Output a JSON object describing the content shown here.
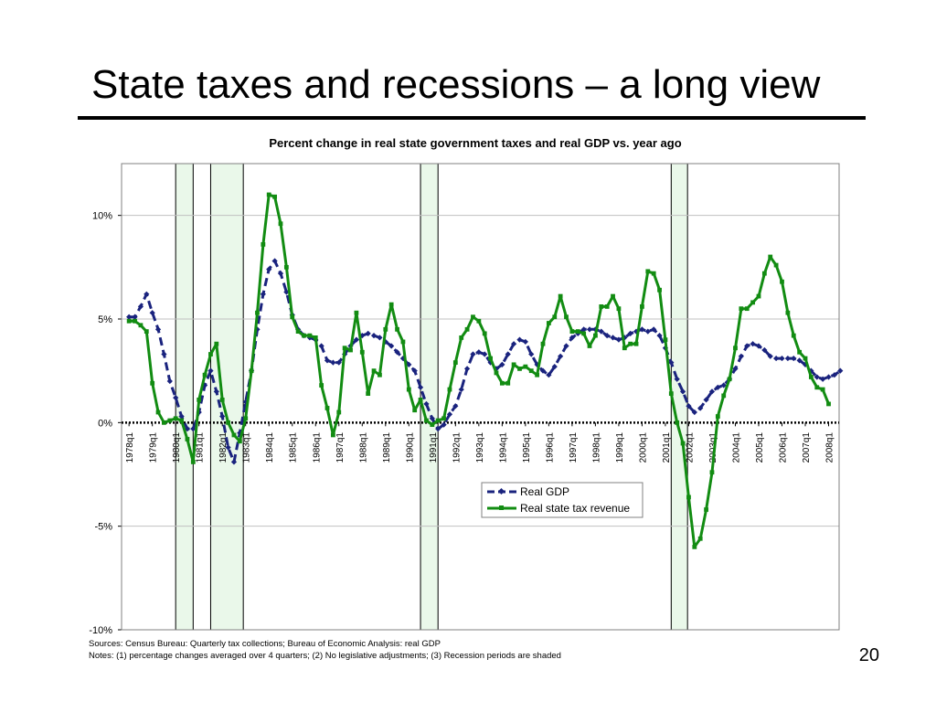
{
  "slide": {
    "title": "State taxes and recessions – a long view",
    "page_number": "20"
  },
  "notes": {
    "sources": "Sources: Census Bureau: Quarterly tax collections; Bureau of Economic Analysis: real GDP",
    "notes": "Notes: (1) percentage changes averaged over 4 quarters; (2) No legislative adjustments; (3) Recession periods are shaded"
  },
  "chart_data": {
    "type": "line",
    "title": "Percent change in real state government taxes and real GDP vs. year ago",
    "xlabel": "",
    "ylabel": "",
    "ylim": [
      -10,
      12.5
    ],
    "y_ticks": [
      10,
      5,
      0,
      -5,
      -10
    ],
    "y_tick_labels": [
      "10%",
      "5%",
      "0%",
      "-5%",
      "-10%"
    ],
    "x_tick_labels": [
      "1978q1",
      "1979q1",
      "1980q1",
      "1981q1",
      "1982q1",
      "1983q1",
      "1984q1",
      "1985q1",
      "1986q1",
      "1987q1",
      "1988q1",
      "1989q1",
      "1990q1",
      "1991q1",
      "1992q1",
      "1993q1",
      "1994q1",
      "1995q1",
      "1996q1",
      "1997q1",
      "1998q1",
      "1999q1",
      "2000q1",
      "2001q1",
      "2002q1",
      "2003q1",
      "2004q1",
      "2005q1",
      "2006q1",
      "2007q1",
      "2008q1"
    ],
    "recessions": [
      {
        "start": 1980.0,
        "end": 1980.75
      },
      {
        "start": 1981.5,
        "end": 1982.9
      },
      {
        "start": 1990.5,
        "end": 1991.25
      },
      {
        "start": 2001.25,
        "end": 2001.95
      }
    ],
    "zero_line": true,
    "grid": true,
    "legend_position": "center-right",
    "series": [
      {
        "name": "Real GDP",
        "color": "#1a237e",
        "dashed": true,
        "marker": "diamond",
        "x_start": 1978.0,
        "x_step": 0.25,
        "values": [
          5.1,
          5.1,
          5.6,
          6.2,
          5.3,
          4.5,
          3.3,
          2.0,
          1.2,
          0.3,
          -0.3,
          -0.3,
          0.5,
          1.8,
          2.5,
          1.5,
          0.3,
          -1.2,
          -1.9,
          -0.5,
          1.0,
          2.5,
          4.5,
          6.2,
          7.4,
          7.8,
          7.2,
          6.3,
          5.2,
          4.5,
          4.2,
          4.1,
          4.0,
          3.7,
          3.0,
          2.9,
          2.9,
          3.3,
          3.7,
          4.0,
          4.2,
          4.3,
          4.2,
          4.1,
          3.9,
          3.7,
          3.4,
          3.1,
          2.8,
          2.5,
          1.7,
          0.9,
          0.2,
          -0.3,
          -0.1,
          0.4,
          0.8,
          1.6,
          2.6,
          3.3,
          3.4,
          3.3,
          2.9,
          2.6,
          2.8,
          3.3,
          3.8,
          4.0,
          3.9,
          3.3,
          2.8,
          2.5,
          2.3,
          2.7,
          3.2,
          3.7,
          4.1,
          4.3,
          4.5,
          4.5,
          4.5,
          4.4,
          4.2,
          4.1,
          4.0,
          4.1,
          4.3,
          4.4,
          4.5,
          4.4,
          4.5,
          4.2,
          3.6,
          2.9,
          2.1,
          1.5,
          0.8,
          0.5,
          0.7,
          1.1,
          1.5,
          1.7,
          1.8,
          2.1,
          2.6,
          3.2,
          3.7,
          3.8,
          3.7,
          3.5,
          3.2,
          3.1,
          3.1,
          3.1,
          3.1,
          3.0,
          2.8,
          2.5,
          2.2,
          2.1,
          2.2,
          2.3,
          2.5
        ]
      },
      {
        "name": "Real state tax revenue",
        "color": "#128c12",
        "dashed": false,
        "marker": "square",
        "x_start": 1978.0,
        "x_step": 0.25,
        "values": [
          4.9,
          4.9,
          4.7,
          4.4,
          1.9,
          0.5,
          0.0,
          0.1,
          0.2,
          0.1,
          -0.8,
          -1.9,
          1.1,
          2.3,
          3.3,
          3.8,
          1.1,
          0.0,
          -0.6,
          -0.9,
          0.2,
          2.5,
          5.3,
          8.6,
          11.0,
          10.9,
          9.6,
          7.5,
          5.1,
          4.4,
          4.2,
          4.2,
          4.1,
          1.8,
          0.7,
          -0.6,
          0.5,
          3.6,
          3.5,
          5.3,
          3.4,
          1.4,
          2.5,
          2.3,
          4.5,
          5.7,
          4.5,
          3.9,
          1.6,
          0.6,
          1.1,
          0.1,
          -0.1,
          0.1,
          0.2,
          1.6,
          2.9,
          4.1,
          4.5,
          5.1,
          4.9,
          4.3,
          3.1,
          2.4,
          1.9,
          1.9,
          2.8,
          2.6,
          2.7,
          2.5,
          2.3,
          3.8,
          4.8,
          5.1,
          6.1,
          5.1,
          4.4,
          4.4,
          4.3,
          3.7,
          4.2,
          5.6,
          5.6,
          6.1,
          5.5,
          3.6,
          3.8,
          3.8,
          5.6,
          7.3,
          7.2,
          6.4,
          4.0,
          1.4,
          0.0,
          -1.0,
          -3.6,
          -6.0,
          -5.6,
          -4.2,
          -2.4,
          0.3,
          1.3,
          2.1,
          3.6,
          5.5,
          5.5,
          5.8,
          6.1,
          7.2,
          8.0,
          7.6,
          6.8,
          5.3,
          4.2,
          3.4,
          3.1,
          2.2,
          1.7,
          1.6,
          0.9
        ]
      }
    ]
  }
}
